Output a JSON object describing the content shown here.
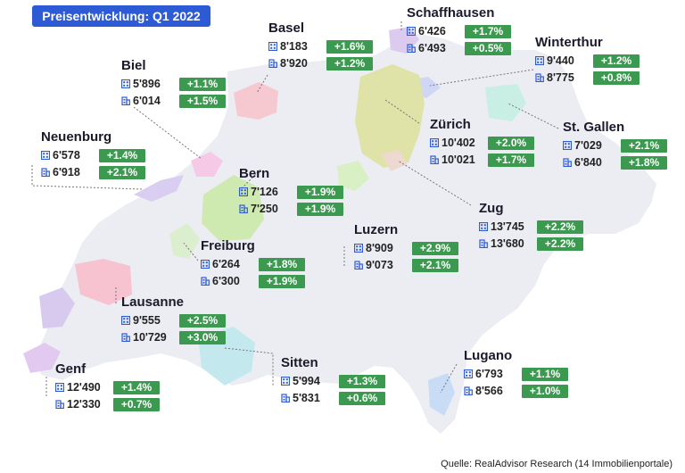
{
  "title": "Preisentwicklung: Q1 2022",
  "source": "Quelle: RealAdvisor Research (14 Immobilienportale)",
  "colors": {
    "badge": "#2d5bd6",
    "change_bg": "#3b9a4f",
    "map_fill": "#ebedf3"
  },
  "icons": {
    "apartment": "apartment-icon",
    "house": "house-icon"
  },
  "cities": [
    {
      "name": "Basel",
      "apartment_price": "8'183",
      "apartment_change": "+1.6%",
      "house_price": "8'920",
      "house_change": "+1.2%"
    },
    {
      "name": "Schaffhausen",
      "apartment_price": "6'426",
      "apartment_change": "+1.7%",
      "house_price": "6'493",
      "house_change": "+0.5%"
    },
    {
      "name": "Winterthur",
      "apartment_price": "9'440",
      "apartment_change": "+1.2%",
      "house_price": "8'775",
      "house_change": "+0.8%"
    },
    {
      "name": "Biel",
      "apartment_price": "5'896",
      "apartment_change": "+1.1%",
      "house_price": "6'014",
      "house_change": "+1.5%"
    },
    {
      "name": "Zürich",
      "apartment_price": "10'402",
      "apartment_change": "+2.0%",
      "house_price": "10'021",
      "house_change": "+1.7%"
    },
    {
      "name": "St. Gallen",
      "apartment_price": "7'029",
      "apartment_change": "+2.1%",
      "house_price": "6'840",
      "house_change": "+1.8%"
    },
    {
      "name": "Neuenburg",
      "apartment_price": "6'578",
      "apartment_change": "+1.4%",
      "house_price": "6'918",
      "house_change": "+2.1%"
    },
    {
      "name": "Bern",
      "apartment_price": "7'126",
      "apartment_change": "+1.9%",
      "house_price": "7'250",
      "house_change": "+1.9%"
    },
    {
      "name": "Zug",
      "apartment_price": "13'745",
      "apartment_change": "+2.2%",
      "house_price": "13'680",
      "house_change": "+2.2%"
    },
    {
      "name": "Luzern",
      "apartment_price": "8'909",
      "apartment_change": "+2.9%",
      "house_price": "9'073",
      "house_change": "+2.1%"
    },
    {
      "name": "Freiburg",
      "apartment_price": "6'264",
      "apartment_change": "+1.8%",
      "house_price": "6'300",
      "house_change": "+1.9%"
    },
    {
      "name": "Lausanne",
      "apartment_price": "9'555",
      "apartment_change": "+2.5%",
      "house_price": "10'729",
      "house_change": "+3.0%"
    },
    {
      "name": "Genf",
      "apartment_price": "12'490",
      "apartment_change": "+1.4%",
      "house_price": "12'330",
      "house_change": "+0.7%"
    },
    {
      "name": "Sitten",
      "apartment_price": "5'994",
      "apartment_change": "+1.3%",
      "house_price": "5'831",
      "house_change": "+0.6%"
    },
    {
      "name": "Lugano",
      "apartment_price": "6'793",
      "apartment_change": "+1.1%",
      "house_price": "8'566",
      "house_change": "+1.0%"
    }
  ]
}
